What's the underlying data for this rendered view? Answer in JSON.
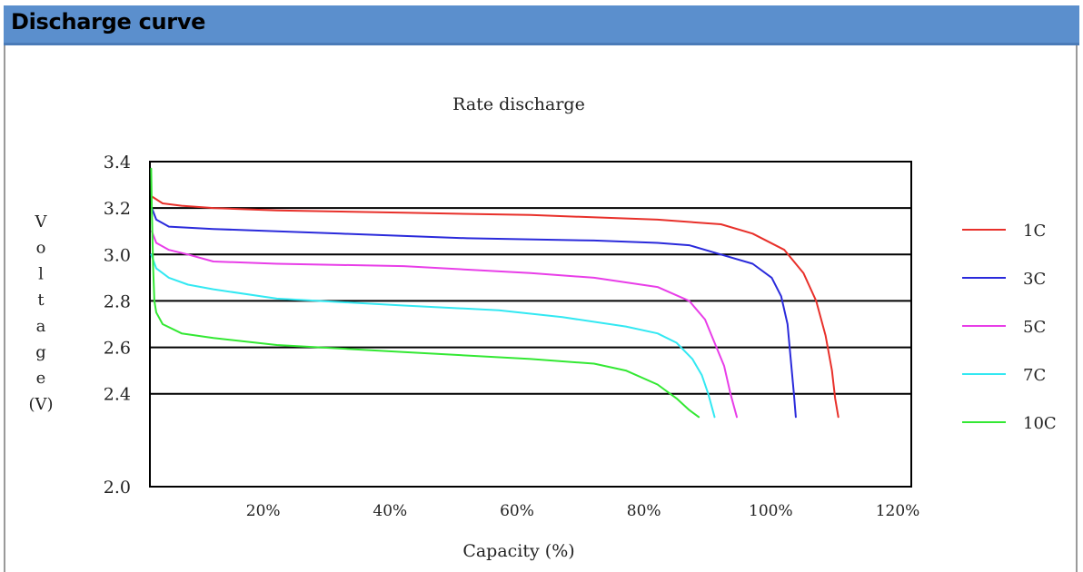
{
  "header": {
    "title": "Discharge curve"
  },
  "chart_data": {
    "type": "line",
    "title": "Rate discharge",
    "xlabel": "Capacity (%)",
    "ylabel_chars": [
      "V",
      "o",
      "l",
      "t",
      "a",
      "g",
      "e",
      "(V)"
    ],
    "xlim": [
      0,
      120
    ],
    "ylim": [
      2.0,
      3.4
    ],
    "x_ticks": [
      {
        "value": 20,
        "label": "20%"
      },
      {
        "value": 40,
        "label": "40%"
      },
      {
        "value": 60,
        "label": "60%"
      },
      {
        "value": 80,
        "label": "80%"
      },
      {
        "value": 100,
        "label": "100%"
      },
      {
        "value": 120,
        "label": "120%"
      }
    ],
    "y_ticks": [
      {
        "value": 2.0,
        "label": "2.0"
      },
      {
        "value": 2.4,
        "label": "2.4"
      },
      {
        "value": 2.6,
        "label": "2.6"
      },
      {
        "value": 2.8,
        "label": "2.8"
      },
      {
        "value": 3.0,
        "label": "3.0"
      },
      {
        "value": 3.2,
        "label": "3.2"
      },
      {
        "value": 3.4,
        "label": "3.4"
      }
    ],
    "grid": "horizontal",
    "legend_position": "right",
    "series": [
      {
        "name": "1C",
        "color": "#e8302a",
        "points": [
          [
            0.3,
            3.25
          ],
          [
            2,
            3.22
          ],
          [
            5,
            3.21
          ],
          [
            10,
            3.2
          ],
          [
            20,
            3.19
          ],
          [
            40,
            3.18
          ],
          [
            60,
            3.17
          ],
          [
            80,
            3.15
          ],
          [
            90,
            3.13
          ],
          [
            95,
            3.09
          ],
          [
            100,
            3.02
          ],
          [
            103,
            2.92
          ],
          [
            105,
            2.8
          ],
          [
            106.5,
            2.65
          ],
          [
            107.5,
            2.5
          ],
          [
            108,
            2.38
          ],
          [
            108.5,
            2.3
          ]
        ]
      },
      {
        "name": "3C",
        "color": "#2a2adb",
        "points": [
          [
            0.3,
            3.2
          ],
          [
            1,
            3.15
          ],
          [
            3,
            3.12
          ],
          [
            10,
            3.11
          ],
          [
            30,
            3.09
          ],
          [
            50,
            3.07
          ],
          [
            70,
            3.06
          ],
          [
            80,
            3.05
          ],
          [
            85,
            3.04
          ],
          [
            90,
            3.0
          ],
          [
            95,
            2.96
          ],
          [
            98,
            2.9
          ],
          [
            99.5,
            2.82
          ],
          [
            100.5,
            2.7
          ],
          [
            101,
            2.55
          ],
          [
            101.5,
            2.4
          ],
          [
            101.8,
            2.3
          ]
        ]
      },
      {
        "name": "5C",
        "color": "#e83ee8",
        "points": [
          [
            0.3,
            3.1
          ],
          [
            1,
            3.05
          ],
          [
            3,
            3.02
          ],
          [
            6,
            3.0
          ],
          [
            10,
            2.97
          ],
          [
            20,
            2.96
          ],
          [
            40,
            2.95
          ],
          [
            60,
            2.92
          ],
          [
            70,
            2.9
          ],
          [
            80,
            2.86
          ],
          [
            85,
            2.8
          ],
          [
            87.5,
            2.72
          ],
          [
            89,
            2.62
          ],
          [
            90.5,
            2.52
          ],
          [
            91.5,
            2.4
          ],
          [
            92.5,
            2.3
          ]
        ]
      },
      {
        "name": "7C",
        "color": "#33e8f2",
        "points": [
          [
            0.2,
            3.0
          ],
          [
            1,
            2.94
          ],
          [
            3,
            2.9
          ],
          [
            6,
            2.87
          ],
          [
            10,
            2.85
          ],
          [
            20,
            2.81
          ],
          [
            40,
            2.78
          ],
          [
            55,
            2.76
          ],
          [
            65,
            2.73
          ],
          [
            75,
            2.69
          ],
          [
            80,
            2.66
          ],
          [
            83,
            2.62
          ],
          [
            85.5,
            2.55
          ],
          [
            87,
            2.48
          ],
          [
            88,
            2.4
          ],
          [
            89,
            2.3
          ]
        ]
      },
      {
        "name": "10C",
        "color": "#33e833",
        "points": [
          [
            0.2,
            3.37
          ],
          [
            0.3,
            3.2
          ],
          [
            0.5,
            2.95
          ],
          [
            0.7,
            2.8
          ],
          [
            1,
            2.75
          ],
          [
            2,
            2.7
          ],
          [
            5,
            2.66
          ],
          [
            10,
            2.64
          ],
          [
            20,
            2.61
          ],
          [
            40,
            2.58
          ],
          [
            60,
            2.55
          ],
          [
            70,
            2.53
          ],
          [
            75,
            2.5
          ],
          [
            80,
            2.44
          ],
          [
            83,
            2.38
          ],
          [
            85,
            2.33
          ],
          [
            86.5,
            2.3
          ]
        ]
      }
    ]
  }
}
